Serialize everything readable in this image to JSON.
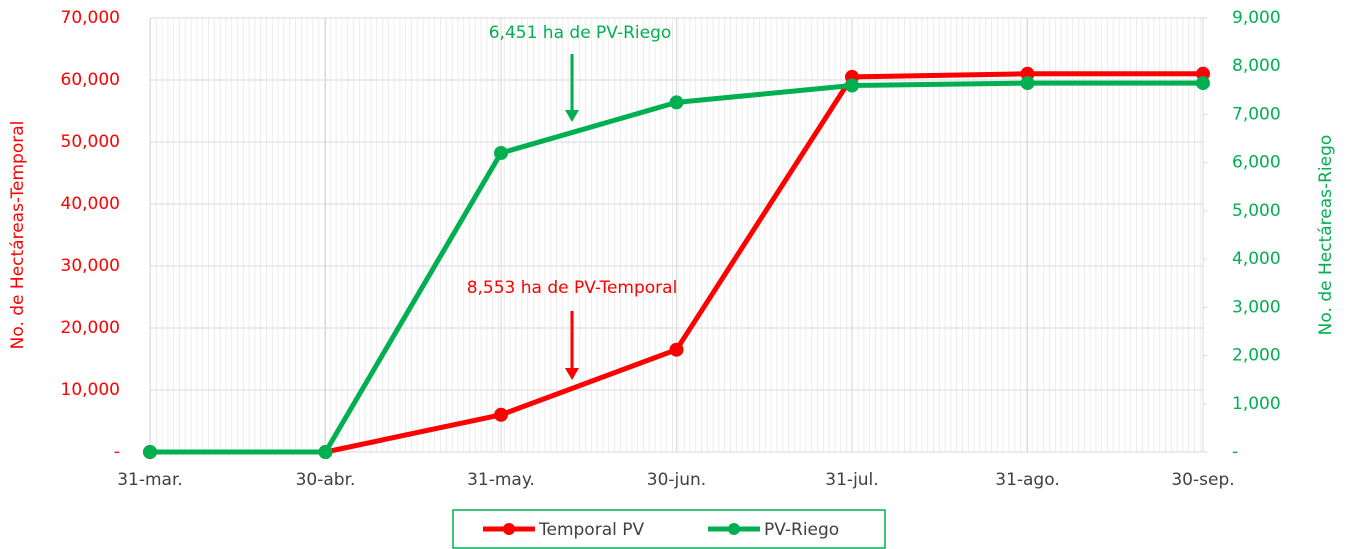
{
  "chart_data": {
    "type": "line",
    "categories": [
      "31-mar.",
      "30-abr.",
      "31-may.",
      "30-jun.",
      "31-jul.",
      "31-ago.",
      "30-sep."
    ],
    "series": [
      {
        "name": "Temporal PV",
        "color": "#ff0000",
        "values": [
          0,
          0,
          6000,
          16500,
          60500,
          61000,
          61000
        ]
      },
      {
        "name": "PV-Riego",
        "color": "#00b050",
        "axis": "y2",
        "values": [
          0,
          0,
          6200,
          7250,
          7600,
          7650,
          7650
        ]
      }
    ],
    "ylabel": "No. de Hectáreas-Temporal",
    "y2label": "No. de Hectáreas-Riego",
    "ylim": [
      0,
      70000
    ],
    "yticks": [
      {
        "value": 0,
        "label": "-"
      },
      {
        "value": 10000,
        "label": "10,000"
      },
      {
        "value": 20000,
        "label": "20,000"
      },
      {
        "value": 30000,
        "label": "30,000"
      },
      {
        "value": 40000,
        "label": "40,000"
      },
      {
        "value": 50000,
        "label": "50,000"
      },
      {
        "value": 60000,
        "label": "60,000"
      },
      {
        "value": 70000,
        "label": "70,000"
      }
    ],
    "y2lim": [
      0,
      9000
    ],
    "y2ticks": [
      {
        "value": 0,
        "label": "-"
      },
      {
        "value": 1000,
        "label": "1,000"
      },
      {
        "value": 2000,
        "label": "2,000"
      },
      {
        "value": 3000,
        "label": "3,000"
      },
      {
        "value": 4000,
        "label": "4,000"
      },
      {
        "value": 5000,
        "label": "5,000"
      },
      {
        "value": 6000,
        "label": "6,000"
      },
      {
        "value": 7000,
        "label": "7,000"
      },
      {
        "value": 8000,
        "label": "8,000"
      },
      {
        "value": 9000,
        "label": "9,000"
      }
    ],
    "annotations": [
      "6,451 ha de PV-Riego",
      "8,553 ha de PV-Temporal"
    ],
    "grid": true
  }
}
